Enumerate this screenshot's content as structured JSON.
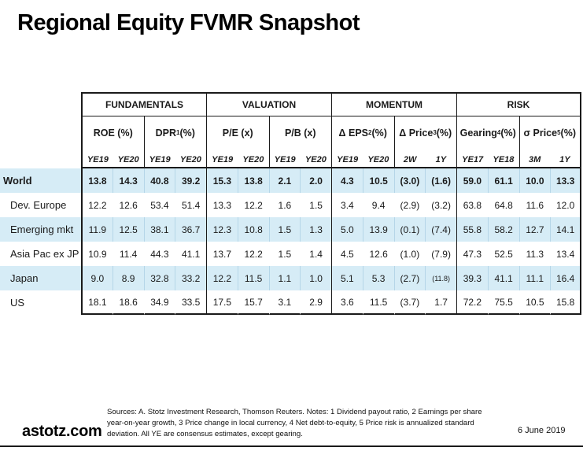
{
  "title": "Regional Equity FVMR Snapshot",
  "colors": {
    "stripe": "#d6ecf6",
    "border": "#1a1a1a",
    "light_separator": "rgba(120,175,205,0.35)"
  },
  "table": {
    "groups": [
      {
        "label": "FUNDAMENTALS",
        "metrics": [
          {
            "name": "ROE",
            "sup": "",
            "unit": " (%)",
            "subs": [
              "YE19",
              "YE20"
            ]
          },
          {
            "name": "DPR",
            "sup": "1",
            "unit": " (%)",
            "subs": [
              "YE19",
              "YE20"
            ]
          }
        ]
      },
      {
        "label": "VALUATION",
        "metrics": [
          {
            "name": "P/E",
            "sup": "",
            "unit": " (x)",
            "subs": [
              "YE19",
              "YE20"
            ]
          },
          {
            "name": "P/B",
            "sup": "",
            "unit": " (x)",
            "subs": [
              "YE19",
              "YE20"
            ]
          }
        ]
      },
      {
        "label": "MOMENTUM",
        "metrics": [
          {
            "name": "Δ EPS",
            "sup": "2",
            "unit": " (%)",
            "subs": [
              "YE19",
              "YE20"
            ]
          },
          {
            "name": "Δ Price",
            "sup": "3",
            "unit": " (%)",
            "subs": [
              "2W",
              "1Y"
            ]
          }
        ]
      },
      {
        "label": "RISK",
        "metrics": [
          {
            "name": "Gearing",
            "sup": "4",
            "unit": " (%)",
            "subs": [
              "YE17",
              "YE18"
            ]
          },
          {
            "name": "σ Price",
            "sup": "5",
            "unit": " (%)",
            "subs": [
              "3M",
              "1Y"
            ]
          }
        ]
      }
    ],
    "rows": [
      {
        "label": "World",
        "bold": true,
        "striped": true,
        "values": [
          "13.8",
          "14.3",
          "40.8",
          "39.2",
          "15.3",
          "13.8",
          "2.1",
          "2.0",
          "4.3",
          "10.5",
          "(3.0)",
          "(1.6)",
          "59.0",
          "61.1",
          "10.0",
          "13.3"
        ]
      },
      {
        "label": "Dev. Europe",
        "bold": false,
        "striped": false,
        "values": [
          "12.2",
          "12.6",
          "53.4",
          "51.4",
          "13.3",
          "12.2",
          "1.6",
          "1.5",
          "3.4",
          "9.4",
          "(2.9)",
          "(3.2)",
          "63.8",
          "64.8",
          "11.6",
          "12.0"
        ]
      },
      {
        "label": "Emerging mkt",
        "bold": false,
        "striped": true,
        "values": [
          "11.9",
          "12.5",
          "38.1",
          "36.7",
          "12.3",
          "10.8",
          "1.5",
          "1.3",
          "5.0",
          "13.9",
          "(0.1)",
          "(7.4)",
          "55.8",
          "58.2",
          "12.7",
          "14.1"
        ]
      },
      {
        "label": "Asia Pac ex JP",
        "bold": false,
        "striped": false,
        "values": [
          "10.9",
          "11.4",
          "44.3",
          "41.1",
          "13.7",
          "12.2",
          "1.5",
          "1.4",
          "4.5",
          "12.6",
          "(1.0)",
          "(7.9)",
          "47.3",
          "52.5",
          "11.3",
          "13.4"
        ]
      },
      {
        "label": "Japan",
        "bold": false,
        "striped": true,
        "values": [
          "9.0",
          "8.9",
          "32.8",
          "33.2",
          "12.2",
          "11.5",
          "1.1",
          "1.0",
          "5.1",
          "5.3",
          "(2.7)",
          "(11.8)",
          "39.3",
          "41.1",
          "11.1",
          "16.4"
        ]
      },
      {
        "label": "US",
        "bold": false,
        "striped": false,
        "values": [
          "18.1",
          "18.6",
          "34.9",
          "33.5",
          "17.5",
          "15.7",
          "3.1",
          "2.9",
          "3.6",
          "11.5",
          "(3.7)",
          "1.7",
          "72.2",
          "75.5",
          "10.5",
          "15.8"
        ]
      }
    ]
  },
  "footer": {
    "brand": "astotz.com",
    "notes_lines": [
      "Sources: A. Stotz Investment Research, Thomson Reuters. Notes: 1 Dividend payout ratio, 2 Earnings per share",
      "year-on-year growth, 3 Price change in local currency, 4 Net debt-to-equity, 5 Price risk is annualized standard",
      "deviation. All YE are consensus estimates, except gearing."
    ],
    "date": "6 June 2019"
  }
}
